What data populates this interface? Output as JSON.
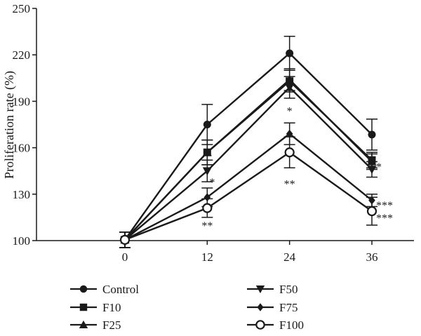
{
  "chart_data": {
    "type": "line",
    "title": "",
    "xlabel": "",
    "ylabel": "Proliferation rate (%)",
    "x": [
      0,
      12,
      24,
      36
    ],
    "xticks": [
      "0",
      "12",
      "24",
      "36"
    ],
    "yticks": [
      "100",
      "130",
      "160",
      "190",
      "220",
      "250"
    ],
    "ylim": [
      100,
      250
    ],
    "xlim": [
      -6,
      42
    ],
    "grid": false,
    "legend_position": "bottom",
    "series": [
      {
        "name": "Control",
        "marker": "circle-filled",
        "values": [
          100.5,
          175,
          221,
          168.5
        ],
        "errors": [
          5,
          13,
          11,
          10
        ]
      },
      {
        "name": "F10",
        "marker": "square-filled",
        "values": [
          100.5,
          157,
          203,
          152
        ],
        "errors": [
          5,
          8,
          7,
          5
        ]
      },
      {
        "name": "F25",
        "marker": "triangle-up-filled",
        "values": [
          100.5,
          157,
          204,
          151
        ],
        "errors": [
          5,
          8,
          7,
          5
        ]
      },
      {
        "name": "F50",
        "marker": "triangle-down-filled",
        "values": [
          100.5,
          145,
          199,
          146
        ],
        "errors": [
          5,
          7,
          7,
          5
        ]
      },
      {
        "name": "F75",
        "marker": "diamond-filled",
        "values": [
          100.5,
          128,
          169,
          126
        ],
        "errors": [
          5,
          6,
          7,
          4
        ]
      },
      {
        "name": "F100",
        "marker": "circle-open",
        "values": [
          100.5,
          121,
          157,
          119
        ],
        "errors": [
          5,
          6,
          10,
          9
        ]
      }
    ],
    "annotations": [
      {
        "text": "*",
        "x": 12,
        "y": 138
      },
      {
        "text": "**",
        "x": 12,
        "y": 110
      },
      {
        "text": "*",
        "x": 24,
        "y": 184
      },
      {
        "text": "**",
        "x": 24,
        "y": 137
      },
      {
        "text": "*",
        "x": 36,
        "y": 148
      },
      {
        "text": "***",
        "x": 36,
        "y": 123
      },
      {
        "text": "***",
        "x": 36,
        "y": 115
      }
    ]
  }
}
